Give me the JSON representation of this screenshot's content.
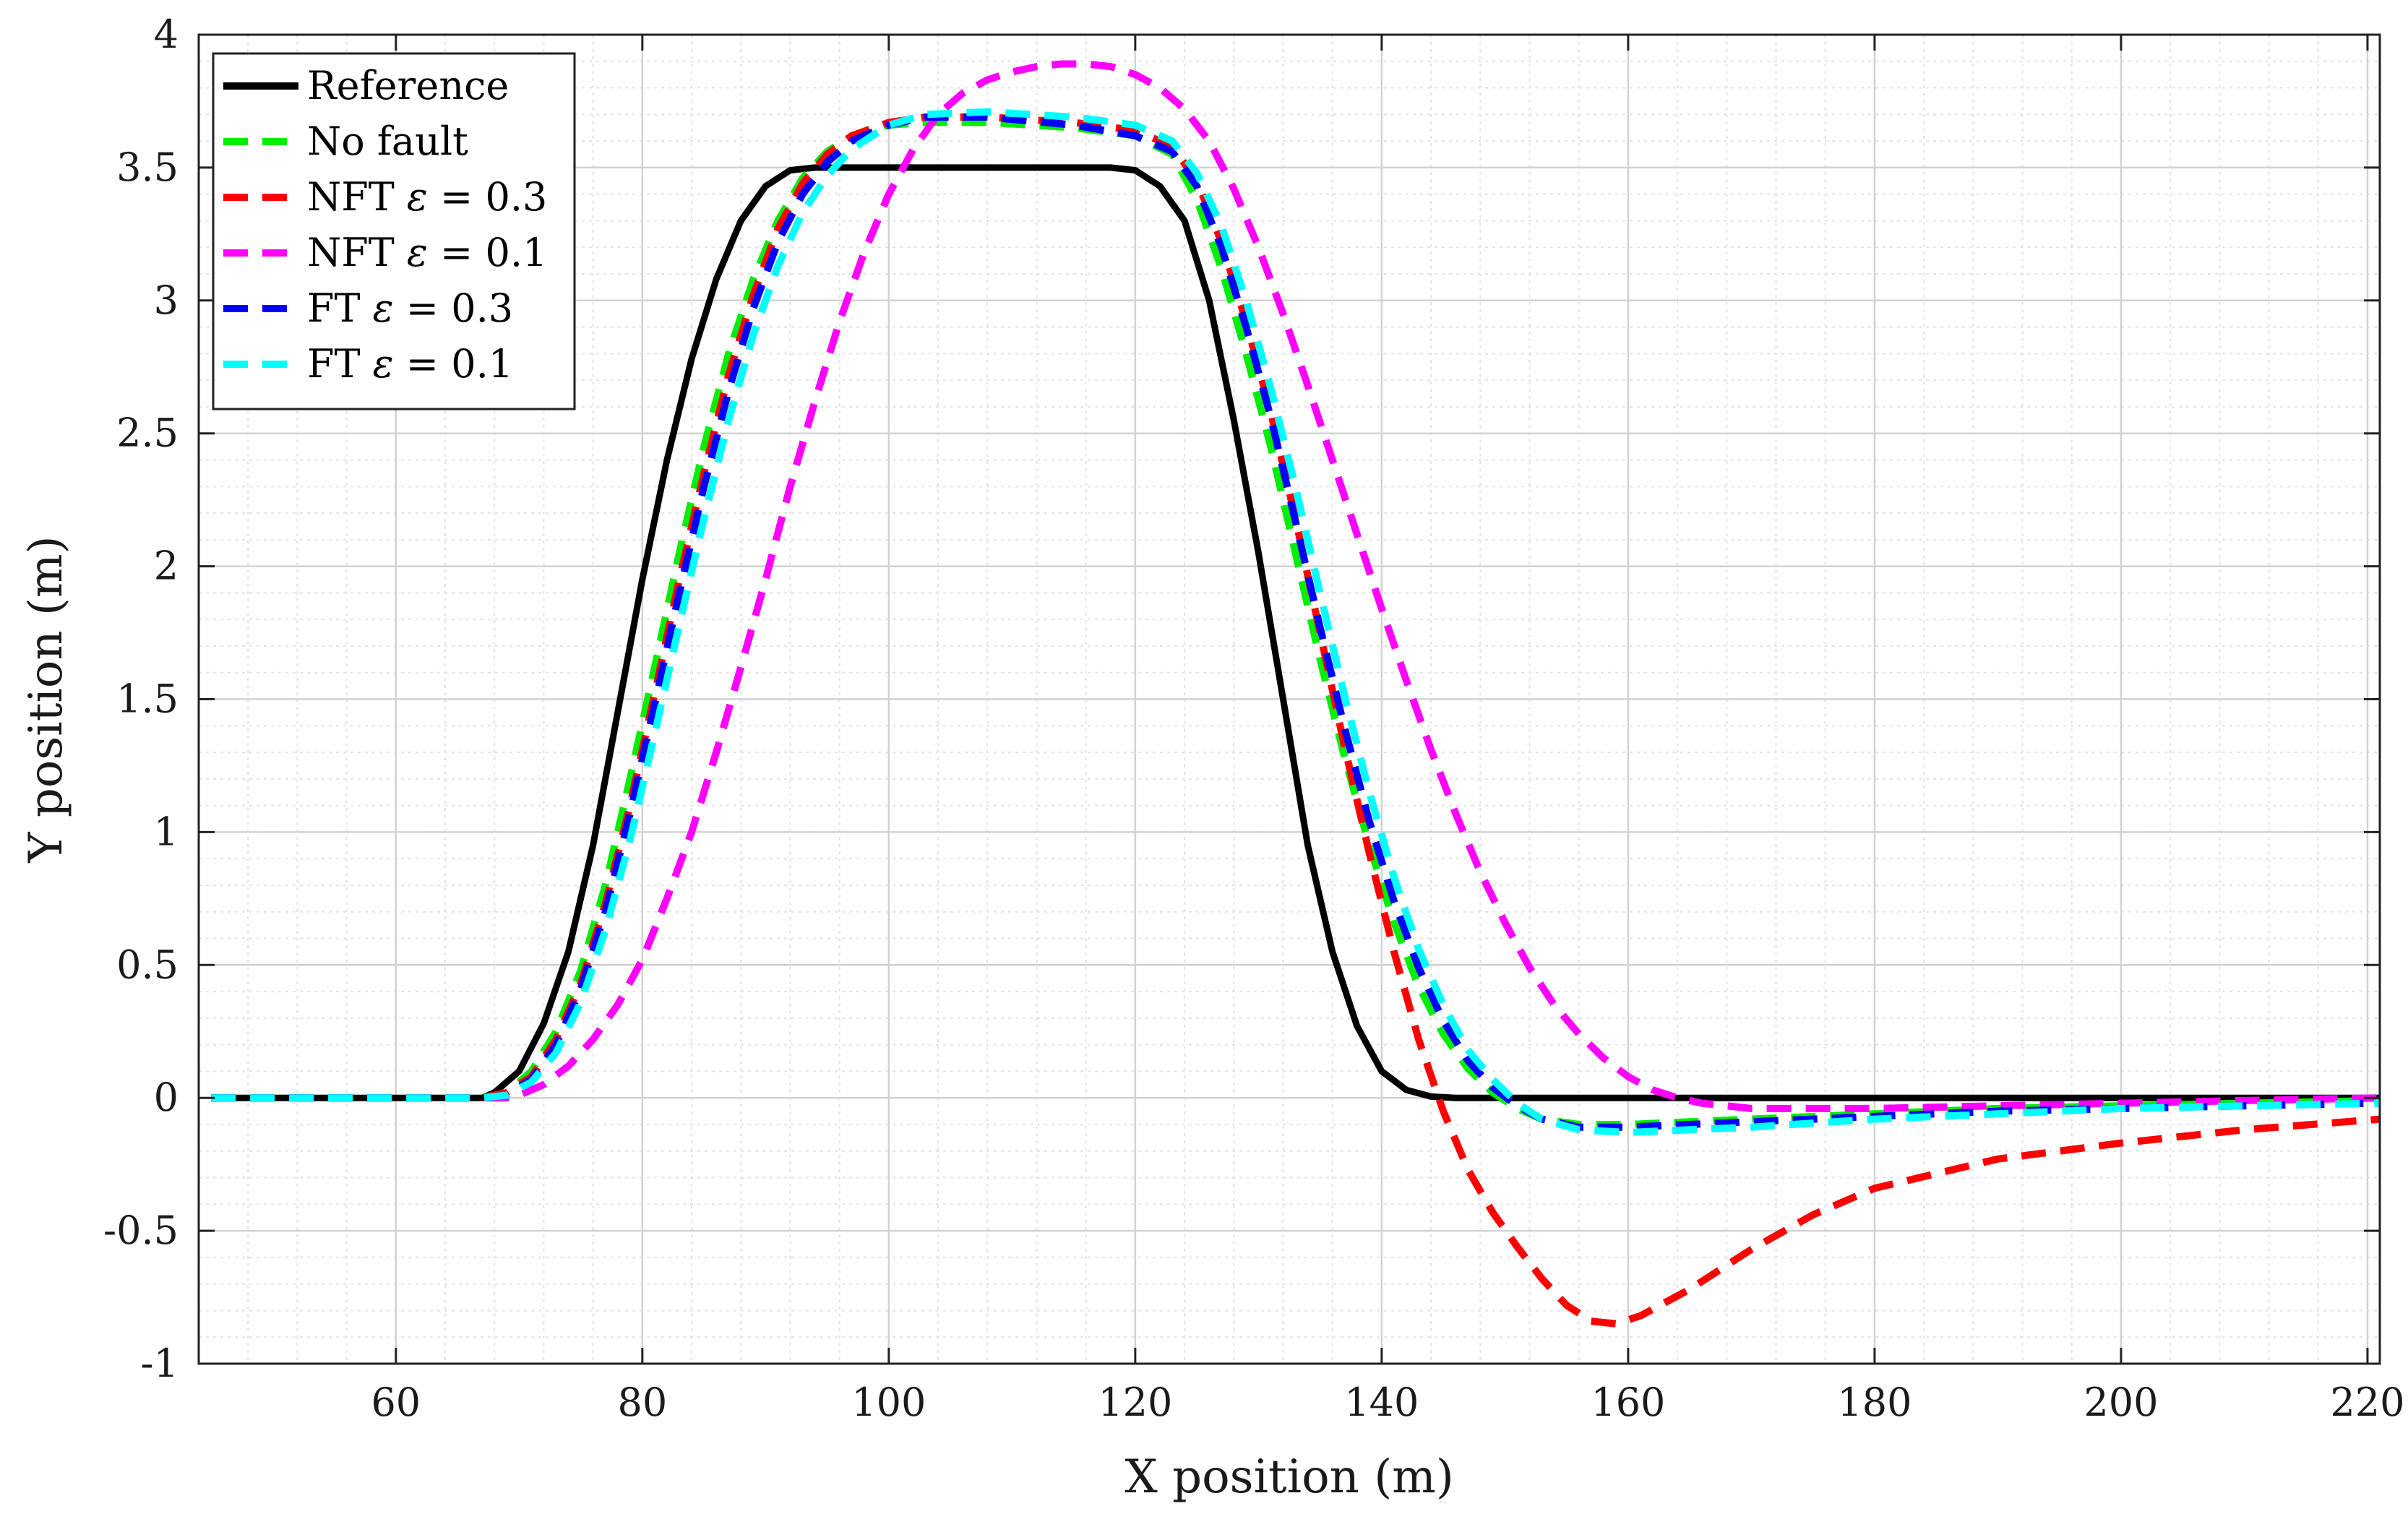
{
  "chart_data": {
    "type": "line",
    "title": "",
    "xlabel": "X position (m)",
    "ylabel": "Y position (m)",
    "xlim": [
      44,
      221
    ],
    "ylim": [
      -1,
      4
    ],
    "grid": true,
    "minor_grid": true,
    "x_ticks": [
      60,
      80,
      100,
      120,
      140,
      160,
      180,
      200,
      220
    ],
    "x_tick_labels": [
      "60",
      "80",
      "100",
      "120",
      "140",
      "160",
      "180",
      "200",
      "220"
    ],
    "y_ticks": [
      -1,
      -0.5,
      0,
      0.5,
      1,
      1.5,
      2,
      2.5,
      3,
      3.5,
      4
    ],
    "y_tick_labels": [
      "-1",
      "-0.5",
      "0",
      "0.5",
      "1",
      "1.5",
      "2",
      "2.5",
      "3",
      "3.5",
      "4"
    ],
    "legend_position": "top-left",
    "series": [
      {
        "name": "Reference",
        "label_html": "Reference",
        "color": "#000000",
        "style": "solid",
        "x": [
          45,
          60,
          67,
          68,
          70,
          72,
          74,
          76,
          78,
          80,
          82,
          84,
          86,
          88,
          90,
          92,
          94,
          100,
          110,
          118,
          120,
          122,
          124,
          126,
          128,
          130,
          132,
          134,
          136,
          138,
          140,
          142,
          144,
          146,
          150,
          180,
          221
        ],
        "y": [
          0,
          0,
          0,
          0.02,
          0.1,
          0.28,
          0.55,
          0.95,
          1.45,
          1.95,
          2.4,
          2.78,
          3.08,
          3.3,
          3.43,
          3.49,
          3.5,
          3.5,
          3.5,
          3.5,
          3.49,
          3.43,
          3.3,
          3.0,
          2.55,
          2.05,
          1.5,
          0.95,
          0.55,
          0.27,
          0.1,
          0.03,
          0.005,
          0,
          0,
          0,
          0
        ]
      },
      {
        "name": "No fault",
        "label_html": "No fault",
        "color": "#00ee00",
        "style": "dashed",
        "x": [
          45,
          60,
          67,
          69,
          71,
          73,
          75,
          77,
          79,
          81,
          83,
          85,
          87,
          89,
          91,
          93,
          95,
          97,
          100,
          103,
          108,
          115,
          120,
          123,
          125,
          127,
          129,
          131,
          133,
          135,
          137,
          139,
          141,
          143,
          145,
          147,
          149,
          151,
          153,
          156,
          160,
          165,
          170,
          180,
          190,
          200,
          210,
          221
        ],
        "y": [
          0,
          0,
          0,
          0.02,
          0.1,
          0.25,
          0.48,
          0.8,
          1.2,
          1.62,
          2.05,
          2.45,
          2.8,
          3.08,
          3.3,
          3.46,
          3.56,
          3.62,
          3.66,
          3.67,
          3.67,
          3.65,
          3.62,
          3.55,
          3.38,
          3.12,
          2.8,
          2.45,
          2.05,
          1.65,
          1.28,
          0.95,
          0.66,
          0.42,
          0.24,
          0.11,
          0.02,
          -0.04,
          -0.08,
          -0.1,
          -0.1,
          -0.09,
          -0.08,
          -0.06,
          -0.04,
          -0.03,
          -0.02,
          -0.01
        ]
      },
      {
        "name": "NFT ε = 0.3",
        "label_html": "NFT <tspan font-style=\"italic\">ε</tspan> = 0.3",
        "color": "#ff0000",
        "style": "dashed",
        "x": [
          45,
          60,
          67,
          69,
          71,
          73,
          75,
          77,
          79,
          81,
          83,
          85,
          87,
          89,
          91,
          93,
          95,
          97,
          100,
          103,
          108,
          115,
          120,
          123,
          125,
          127,
          129,
          131,
          133,
          135,
          137,
          139,
          141,
          143,
          145,
          147,
          149,
          151,
          153,
          155,
          157,
          159,
          161,
          165,
          170,
          175,
          180,
          190,
          200,
          210,
          221
        ],
        "y": [
          0,
          0,
          0,
          0.02,
          0.08,
          0.22,
          0.43,
          0.73,
          1.1,
          1.52,
          1.95,
          2.35,
          2.72,
          3.02,
          3.27,
          3.44,
          3.55,
          3.62,
          3.67,
          3.69,
          3.69,
          3.67,
          3.64,
          3.58,
          3.45,
          3.22,
          2.92,
          2.58,
          2.18,
          1.75,
          1.32,
          0.92,
          0.55,
          0.22,
          -0.05,
          -0.27,
          -0.43,
          -0.56,
          -0.68,
          -0.78,
          -0.84,
          -0.85,
          -0.82,
          -0.72,
          -0.57,
          -0.44,
          -0.34,
          -0.23,
          -0.17,
          -0.12,
          -0.08
        ]
      },
      {
        "name": "NFT ε = 0.1",
        "label_html": "NFT <tspan font-style=\"italic\">ε</tspan> = 0.1",
        "color": "#ff00ff",
        "style": "dashed",
        "x": [
          45,
          60,
          69,
          70,
          72,
          74,
          76,
          78,
          80,
          82,
          84,
          86,
          88,
          90,
          92,
          94,
          96,
          98,
          100,
          102,
          104,
          106,
          108,
          110,
          112,
          114,
          116,
          118,
          120,
          122,
          124,
          126,
          128,
          130,
          132,
          134,
          136,
          138,
          140,
          142,
          144,
          146,
          148,
          150,
          152,
          154,
          156,
          158,
          160,
          162,
          164,
          166,
          168,
          170,
          175,
          180,
          190,
          200,
          210,
          221
        ],
        "y": [
          0,
          0,
          0,
          0.01,
          0.05,
          0.12,
          0.22,
          0.35,
          0.52,
          0.75,
          1.0,
          1.3,
          1.62,
          1.95,
          2.3,
          2.62,
          2.92,
          3.18,
          3.4,
          3.57,
          3.7,
          3.78,
          3.83,
          3.86,
          3.88,
          3.89,
          3.89,
          3.88,
          3.85,
          3.8,
          3.72,
          3.6,
          3.42,
          3.2,
          2.95,
          2.68,
          2.4,
          2.12,
          1.84,
          1.57,
          1.31,
          1.07,
          0.85,
          0.66,
          0.49,
          0.35,
          0.24,
          0.15,
          0.08,
          0.03,
          0.0,
          -0.02,
          -0.03,
          -0.04,
          -0.04,
          -0.04,
          -0.03,
          -0.02,
          -0.01,
          0
        ]
      },
      {
        "name": "FT ε = 0.3",
        "label_html": "FT <tspan font-style=\"italic\">ε</tspan> = 0.3",
        "color": "#0000ff",
        "style": "dashed",
        "x": [
          45,
          60,
          67,
          69,
          71,
          73,
          75,
          77,
          79,
          81,
          83,
          85,
          87,
          89,
          91,
          93,
          95,
          97,
          100,
          103,
          108,
          115,
          120,
          123,
          125,
          127,
          129,
          131,
          133,
          135,
          137,
          139,
          141,
          143,
          145,
          147,
          149,
          151,
          153,
          156,
          160,
          165,
          170,
          180,
          190,
          200,
          210,
          221
        ],
        "y": [
          0,
          0,
          0,
          0.01,
          0.07,
          0.2,
          0.41,
          0.7,
          1.07,
          1.48,
          1.9,
          2.3,
          2.66,
          2.97,
          3.22,
          3.4,
          3.52,
          3.6,
          3.66,
          3.69,
          3.69,
          3.66,
          3.62,
          3.56,
          3.43,
          3.2,
          2.9,
          2.56,
          2.17,
          1.77,
          1.39,
          1.04,
          0.74,
          0.49,
          0.29,
          0.14,
          0.04,
          -0.03,
          -0.08,
          -0.11,
          -0.11,
          -0.1,
          -0.09,
          -0.07,
          -0.05,
          -0.04,
          -0.03,
          -0.02
        ]
      },
      {
        "name": "FT ε = 0.1",
        "label_html": "FT <tspan font-style=\"italic\">ε</tspan> = 0.1",
        "color": "#00ffff",
        "style": "dashed",
        "x": [
          45,
          60,
          67,
          69,
          71,
          73,
          75,
          77,
          79,
          81,
          83,
          85,
          87,
          89,
          91,
          93,
          95,
          97,
          100,
          103,
          108,
          115,
          120,
          123,
          125,
          127,
          129,
          131,
          133,
          135,
          137,
          139,
          141,
          143,
          145,
          147,
          149,
          151,
          153,
          156,
          160,
          165,
          170,
          180,
          190,
          200,
          210,
          221
        ],
        "y": [
          0,
          0,
          0,
          0.01,
          0.06,
          0.17,
          0.36,
          0.63,
          0.97,
          1.37,
          1.78,
          2.18,
          2.55,
          2.87,
          3.13,
          3.33,
          3.47,
          3.57,
          3.66,
          3.7,
          3.71,
          3.69,
          3.66,
          3.6,
          3.48,
          3.28,
          3.0,
          2.67,
          2.3,
          1.9,
          1.51,
          1.15,
          0.83,
          0.56,
          0.35,
          0.18,
          0.07,
          -0.02,
          -0.08,
          -0.12,
          -0.13,
          -0.12,
          -0.11,
          -0.08,
          -0.06,
          -0.04,
          -0.03,
          -0.02
        ]
      }
    ]
  }
}
